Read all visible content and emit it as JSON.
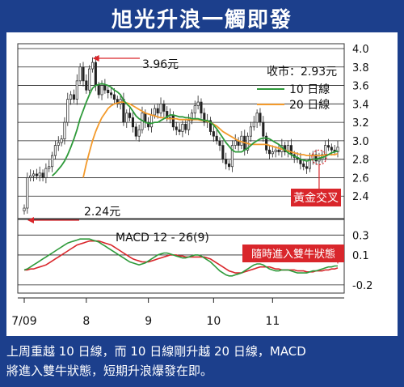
{
  "title": "旭光升浪一觸即發",
  "caption_line1": "上周重越 10 日線，而 10 日線剛升越 20 日線，MACD",
  "caption_line2": "將進入雙牛狀態，短期升浪爆發在即。",
  "colors": {
    "frame": "#1c3f8c",
    "ma10": "#2e9a3a",
    "ma20": "#f39a2b",
    "macd_line": "#2e9a3a",
    "signal_line": "#d9262b",
    "annotation_red": "#d9262b",
    "candle": "#222222"
  },
  "chart_data": [
    {
      "type": "candlestick",
      "annotations": {
        "high_label": "3.96元",
        "low_label": "2.24元",
        "close_label": "收市：2.93元",
        "cross_label": "黃金交叉"
      },
      "legend": [
        "10 日線",
        "20 日線"
      ],
      "legend_position": "top-right",
      "ylim": [
        2.2,
        4.0
      ],
      "yticks": [
        "4.0",
        "3.8",
        "3.6",
        "3.4",
        "3.2",
        "3.0",
        "2.8",
        "2.6",
        "2.4"
      ],
      "x_ticks": [
        "7/09",
        "8",
        "9",
        "10",
        "11"
      ],
      "x_tick_index": [
        0,
        20,
        40,
        61,
        80
      ],
      "grid": true,
      "close": [
        2.27,
        2.6,
        2.62,
        2.64,
        2.62,
        2.65,
        2.6,
        2.7,
        2.72,
        2.84,
        2.95,
        2.98,
        3.02,
        3.2,
        3.45,
        3.5,
        3.45,
        3.65,
        3.8,
        3.65,
        3.55,
        3.78,
        3.85,
        3.6,
        3.5,
        3.6,
        3.55,
        3.52,
        3.5,
        3.45,
        3.4,
        3.45,
        3.2,
        3.3,
        3.25,
        3.15,
        3.05,
        3.12,
        3.3,
        3.2,
        3.15,
        3.28,
        3.35,
        3.3,
        3.4,
        3.32,
        3.25,
        3.28,
        3.15,
        3.12,
        3.1,
        3.18,
        3.12,
        3.22,
        3.3,
        3.38,
        3.42,
        3.3,
        3.2,
        3.22,
        3.1,
        3.05,
        3.0,
        2.95,
        2.8,
        2.75,
        2.72,
        2.95,
        3.0,
        2.95,
        3.05,
        2.9,
        3.05,
        3.15,
        3.2,
        3.3,
        3.2,
        3.05,
        2.9,
        2.86,
        2.88,
        2.9,
        2.88,
        2.95,
        2.88,
        2.95,
        2.85,
        2.82,
        2.8,
        2.75,
        2.72,
        2.7,
        2.8,
        2.85,
        2.78,
        2.8,
        2.85,
        2.95,
        2.93,
        2.9,
        2.88,
        2.93
      ],
      "ma10": [
        null,
        null,
        null,
        null,
        null,
        null,
        null,
        null,
        null,
        2.62,
        2.65,
        2.69,
        2.73,
        2.78,
        2.85,
        2.93,
        3.02,
        3.12,
        3.24,
        3.33,
        3.42,
        3.5,
        3.57,
        3.6,
        3.61,
        3.62,
        3.61,
        3.6,
        3.58,
        3.55,
        3.53,
        3.5,
        3.44,
        3.4,
        3.37,
        3.32,
        3.27,
        3.24,
        3.22,
        3.2,
        3.19,
        3.19,
        3.2,
        3.2,
        3.22,
        3.24,
        3.26,
        3.28,
        3.28,
        3.27,
        3.26,
        3.26,
        3.25,
        3.25,
        3.24,
        3.24,
        3.24,
        3.23,
        3.22,
        3.22,
        3.2,
        3.17,
        3.13,
        3.08,
        3.03,
        2.98,
        2.94,
        2.9,
        2.88,
        2.88,
        2.88,
        2.9,
        2.92,
        2.95,
        2.98,
        3.0,
        3.02,
        3.03,
        3.03,
        3.02,
        3.0,
        2.98,
        2.96,
        2.93,
        2.9,
        2.87,
        2.85,
        2.83,
        2.82,
        2.8,
        2.79,
        2.78,
        2.79,
        2.8,
        2.8,
        2.81,
        2.82,
        2.83,
        2.85,
        2.87,
        2.88,
        2.89
      ],
      "ma20": [
        null,
        null,
        null,
        null,
        null,
        null,
        null,
        null,
        null,
        null,
        null,
        null,
        null,
        null,
        null,
        null,
        null,
        null,
        null,
        2.6,
        2.75,
        2.88,
        3.0,
        3.1,
        3.18,
        3.25,
        3.3,
        3.35,
        3.38,
        3.4,
        3.41,
        3.42,
        3.42,
        3.41,
        3.4,
        3.38,
        3.36,
        3.34,
        3.32,
        3.3,
        3.29,
        3.28,
        3.27,
        3.26,
        3.25,
        3.25,
        3.24,
        3.24,
        3.24,
        3.24,
        3.23,
        3.23,
        3.23,
        3.23,
        3.23,
        3.23,
        3.23,
        3.22,
        3.22,
        3.21,
        3.2,
        3.18,
        3.16,
        3.13,
        3.1,
        3.08,
        3.06,
        3.04,
        3.02,
        3.0,
        2.99,
        2.98,
        2.97,
        2.96,
        2.96,
        2.96,
        2.96,
        2.96,
        2.96,
        2.95,
        2.94,
        2.93,
        2.92,
        2.91,
        2.9,
        2.89,
        2.88,
        2.87,
        2.86,
        2.85,
        2.85,
        2.84,
        2.84,
        2.84,
        2.84,
        2.84,
        2.84,
        2.85,
        2.85,
        2.85,
        2.85,
        2.86
      ]
    },
    {
      "type": "line",
      "title": "MACD 12 - 26(9)",
      "ylim": [
        -0.25,
        0.4
      ],
      "yticks": [
        "0.3",
        "0.1",
        "-0.2"
      ],
      "ytick_values": [
        0.3,
        0.1,
        -0.2
      ],
      "annotation": "隨時進入雙牛狀態",
      "series": [
        {
          "name": "MACD",
          "values": [
            -0.05,
            -0.04,
            -0.02,
            0.0,
            0.02,
            0.04,
            0.06,
            0.08,
            0.1,
            0.12,
            0.14,
            0.16,
            0.18,
            0.2,
            0.22,
            0.23,
            0.24,
            0.25,
            0.26,
            0.26,
            0.26,
            0.26,
            0.25,
            0.24,
            0.23,
            0.21,
            0.19,
            0.17,
            0.15,
            0.13,
            0.11,
            0.09,
            0.07,
            0.05,
            0.03,
            0.02,
            0.01,
            0.0,
            0.01,
            0.02,
            0.04,
            0.06,
            0.08,
            0.1,
            0.11,
            0.12,
            0.12,
            0.11,
            0.1,
            0.09,
            0.08,
            0.07,
            0.07,
            0.08,
            0.09,
            0.1,
            0.1,
            0.09,
            0.07,
            0.05,
            0.03,
            0.0,
            -0.03,
            -0.06,
            -0.08,
            -0.1,
            -0.11,
            -0.11,
            -0.1,
            -0.09,
            -0.08,
            -0.06,
            -0.04,
            -0.02,
            0.0,
            0.01,
            0.01,
            0.0,
            -0.02,
            -0.04,
            -0.05,
            -0.06,
            -0.06,
            -0.05,
            -0.05,
            -0.05,
            -0.06,
            -0.07,
            -0.08,
            -0.08,
            -0.08,
            -0.08,
            -0.07,
            -0.06,
            -0.06,
            -0.05,
            -0.04,
            -0.03,
            -0.02,
            -0.02,
            -0.01,
            -0.01
          ]
        },
        {
          "name": "Signal",
          "values": [
            -0.05,
            -0.05,
            -0.04,
            -0.04,
            -0.03,
            -0.02,
            -0.01,
            0.0,
            0.02,
            0.04,
            0.06,
            0.08,
            0.1,
            0.12,
            0.14,
            0.16,
            0.18,
            0.2,
            0.21,
            0.22,
            0.23,
            0.24,
            0.24,
            0.24,
            0.24,
            0.23,
            0.22,
            0.21,
            0.2,
            0.18,
            0.16,
            0.14,
            0.12,
            0.1,
            0.08,
            0.06,
            0.05,
            0.04,
            0.03,
            0.03,
            0.03,
            0.04,
            0.05,
            0.06,
            0.07,
            0.08,
            0.09,
            0.1,
            0.1,
            0.1,
            0.09,
            0.09,
            0.08,
            0.08,
            0.08,
            0.08,
            0.08,
            0.08,
            0.08,
            0.07,
            0.06,
            0.04,
            0.02,
            0.0,
            -0.02,
            -0.04,
            -0.06,
            -0.07,
            -0.08,
            -0.08,
            -0.08,
            -0.07,
            -0.06,
            -0.05,
            -0.04,
            -0.03,
            -0.02,
            -0.02,
            -0.02,
            -0.02,
            -0.03,
            -0.04,
            -0.04,
            -0.05,
            -0.05,
            -0.05,
            -0.05,
            -0.05,
            -0.06,
            -0.06,
            -0.06,
            -0.07,
            -0.07,
            -0.07,
            -0.06,
            -0.06,
            -0.06,
            -0.05,
            -0.05,
            -0.04,
            -0.04,
            -0.03
          ]
        }
      ]
    }
  ]
}
